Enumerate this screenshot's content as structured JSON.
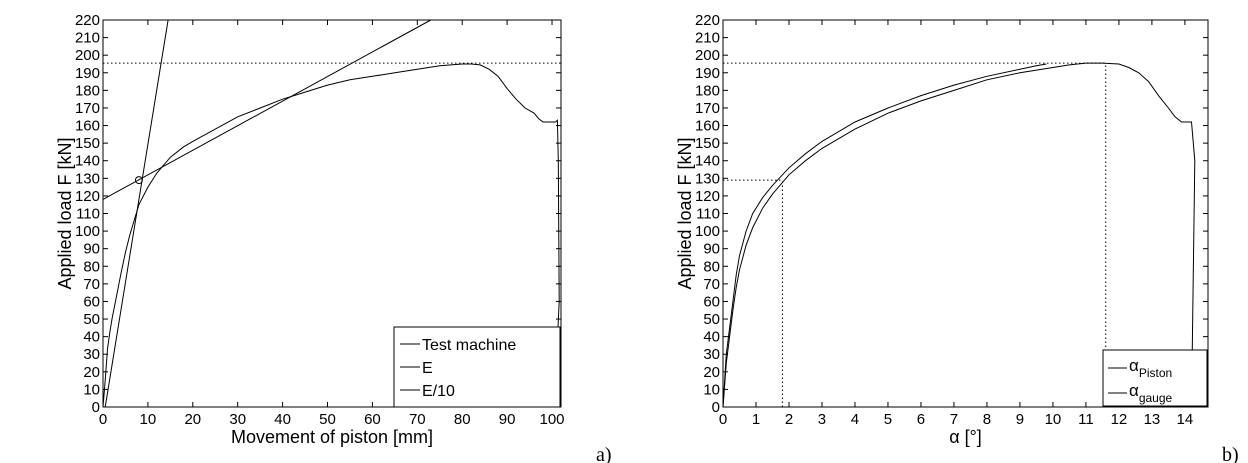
{
  "chart_data": [
    {
      "type": "line",
      "panel_label": "a)",
      "xlabel": "Movement of piston [mm]",
      "ylabel": "Applied load F [kN]",
      "xlim": [
        0,
        102
      ],
      "ylim": [
        0,
        220
      ],
      "xticks": [
        0,
        10,
        20,
        30,
        40,
        50,
        60,
        70,
        80,
        90,
        100
      ],
      "yticks": [
        0,
        10,
        20,
        30,
        40,
        50,
        60,
        70,
        80,
        90,
        100,
        110,
        120,
        130,
        140,
        150,
        160,
        170,
        180,
        190,
        200,
        210,
        220
      ],
      "grid": false,
      "legend_position": "bottom-right",
      "legend": [
        "Test machine",
        "E",
        "E/10"
      ],
      "series": [
        {
          "name": "Test machine",
          "x": [
            0,
            0.5,
            1.0,
            1.5,
            2,
            3,
            4,
            5,
            6,
            8,
            10,
            12,
            15,
            18,
            20,
            25,
            30,
            35,
            40,
            45,
            50,
            55,
            60,
            65,
            70,
            75,
            80,
            82,
            84,
            86,
            88,
            90,
            92,
            94,
            96,
            97,
            98,
            99,
            100,
            100.8,
            101.2,
            101.4,
            101.6,
            100.5
          ],
          "y": [
            0,
            15,
            33,
            42,
            50,
            63,
            76,
            88,
            98,
            115,
            125,
            133,
            142,
            148,
            151,
            158,
            165,
            170,
            175,
            179,
            183,
            186,
            188,
            190,
            192,
            194,
            195,
            195,
            194.5,
            192,
            188,
            181,
            175,
            170,
            167,
            164,
            162,
            162,
            162,
            162,
            163,
            140,
            60,
            0
          ]
        },
        {
          "name": "E",
          "x": [
            0.5,
            14.5
          ],
          "y": [
            0,
            220
          ]
        },
        {
          "name": "E/10",
          "x": [
            0,
            73
          ],
          "y": [
            118,
            220
          ]
        }
      ],
      "reference_lines": {
        "horizontal_y": 195.5
      },
      "marker": {
        "x": 8.0,
        "y": 129,
        "shape": "circle"
      }
    },
    {
      "type": "line",
      "panel_label": "b)",
      "xlabel": "α [°]",
      "ylabel": "Applied load F [kN]",
      "xlim": [
        0,
        14.7
      ],
      "ylim": [
        0,
        220
      ],
      "xticks": [
        0,
        1,
        2,
        3,
        4,
        5,
        6,
        7,
        8,
        9,
        10,
        11,
        12,
        13,
        14
      ],
      "yticks": [
        0,
        10,
        20,
        30,
        40,
        50,
        60,
        70,
        80,
        90,
        100,
        110,
        120,
        130,
        140,
        150,
        160,
        170,
        180,
        190,
        200,
        210,
        220
      ],
      "grid": false,
      "legend_position": "bottom-right",
      "legend": [
        {
          "symbol": "α",
          "subscript": "Piston"
        },
        {
          "symbol": "α",
          "subscript": "gauge"
        }
      ],
      "series": [
        {
          "name": "αPiston",
          "x": [
            0,
            0.1,
            0.2,
            0.3,
            0.4,
            0.5,
            0.7,
            0.9,
            1.2,
            1.5,
            2,
            2.5,
            3,
            4,
            5,
            6,
            7,
            8,
            9,
            10,
            10.5,
            11,
            11.5,
            12,
            12.3,
            12.6,
            12.9,
            13.2,
            13.5,
            13.7,
            13.9,
            14.1,
            14.2,
            14.3,
            14.2
          ],
          "y": [
            0,
            25,
            40,
            55,
            68,
            78,
            92,
            102,
            113,
            121,
            132,
            140,
            147,
            158,
            167,
            174,
            180,
            186,
            190,
            193,
            194.5,
            195.5,
            195.5,
            195,
            193,
            190,
            185,
            177,
            170,
            165,
            162,
            162,
            162,
            140,
            0
          ]
        },
        {
          "name": "αgauge",
          "x": [
            0,
            0.1,
            0.2,
            0.3,
            0.4,
            0.5,
            0.7,
            0.9,
            1.2,
            1.5,
            2,
            2.5,
            3,
            4,
            5,
            6,
            7,
            8,
            9,
            9.5,
            9.8
          ],
          "y": [
            0,
            30,
            45,
            60,
            75,
            86,
            100,
            110,
            119,
            126,
            136,
            144,
            151,
            162,
            170,
            177,
            183,
            188,
            192,
            194,
            195
          ]
        }
      ],
      "reference_lines": {
        "horizontal": [
          {
            "y": 195.5,
            "x_to": 11.6
          },
          {
            "y": 129,
            "x_to": 1.8
          }
        ],
        "vertical": [
          {
            "x": 11.6,
            "y_to": 195.5
          },
          {
            "x": 1.8,
            "y_to": 129
          }
        ]
      }
    }
  ]
}
